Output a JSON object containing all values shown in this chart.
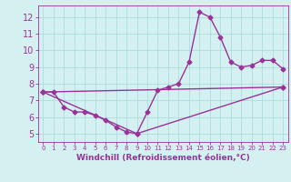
{
  "title": "",
  "xlabel": "Windchill (Refroidissement éolien,°C)",
  "ylabel": "",
  "bg_color": "#d4f0f0",
  "line_color": "#993399",
  "grid_color": "#aadddd",
  "xlim": [
    -0.5,
    23.5
  ],
  "ylim": [
    4.5,
    12.7
  ],
  "yticks": [
    5,
    6,
    7,
    8,
    9,
    10,
    11,
    12
  ],
  "xticks": [
    0,
    1,
    2,
    3,
    4,
    5,
    6,
    7,
    8,
    9,
    10,
    11,
    12,
    13,
    14,
    15,
    16,
    17,
    18,
    19,
    20,
    21,
    22,
    23
  ],
  "line1_x": [
    0,
    1,
    2,
    3,
    4,
    5,
    6,
    7,
    8,
    9,
    10,
    11,
    12,
    13,
    14,
    15,
    16,
    17,
    18,
    19,
    20,
    21,
    22,
    23
  ],
  "line1_y": [
    7.5,
    7.5,
    6.6,
    6.3,
    6.3,
    6.1,
    5.8,
    5.4,
    5.1,
    5.0,
    6.3,
    7.6,
    7.8,
    8.0,
    9.3,
    12.3,
    12.0,
    10.8,
    9.3,
    9.0,
    9.1,
    9.4,
    9.4,
    8.9
  ],
  "line2_x": [
    0,
    23
  ],
  "line2_y": [
    7.5,
    7.8
  ],
  "line3_x": [
    0,
    9,
    23
  ],
  "line3_y": [
    7.5,
    5.0,
    7.8
  ],
  "marker": "D",
  "markersize": 2.5,
  "linewidth": 1.0
}
